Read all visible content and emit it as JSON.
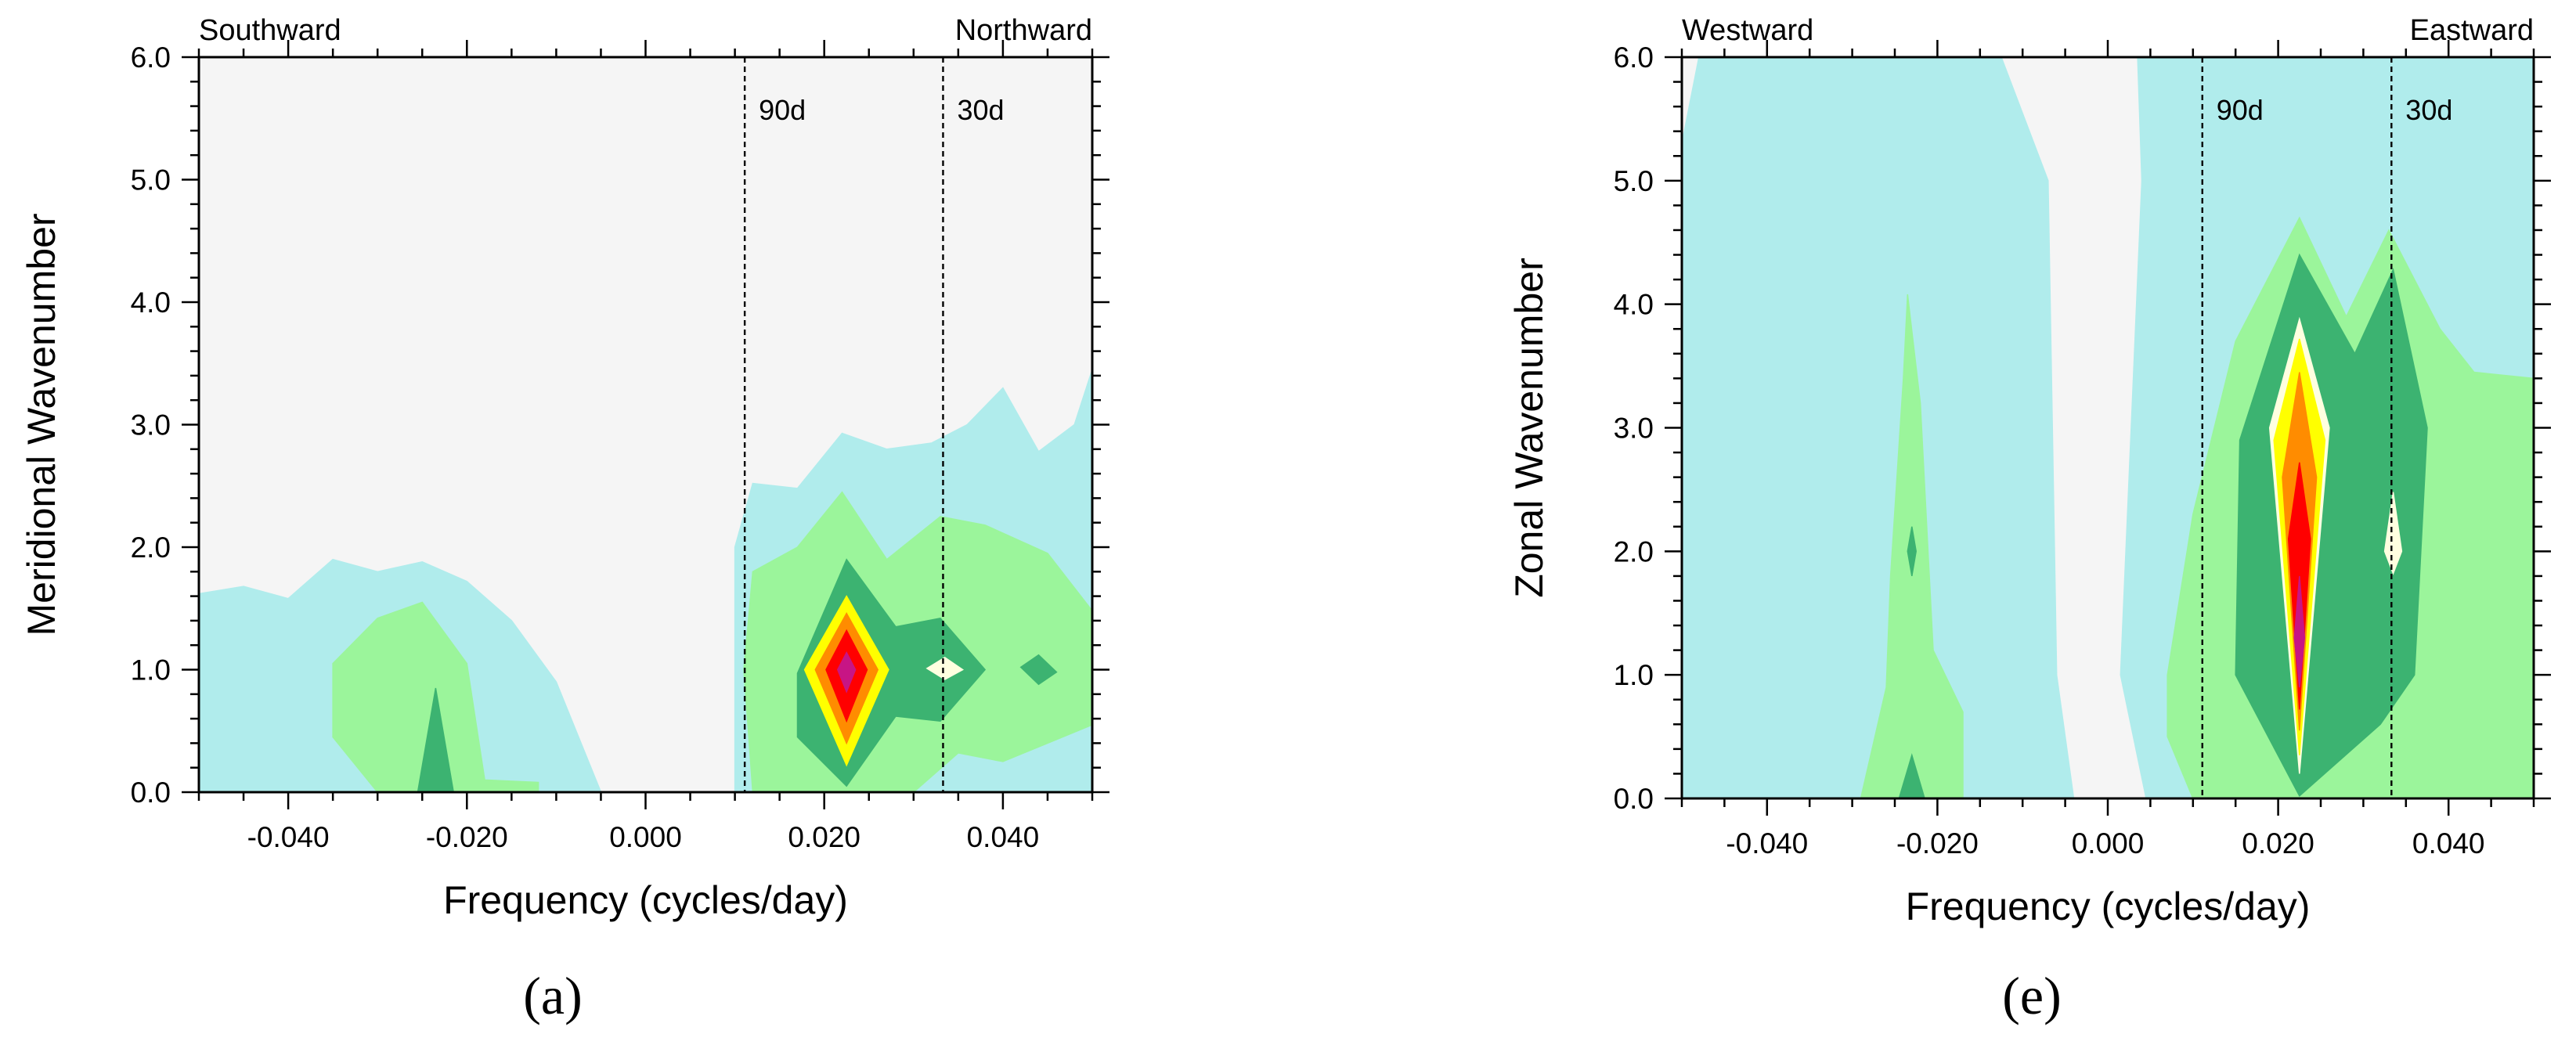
{
  "chart_data": [
    {
      "type": "contour",
      "panel_label": "(a)",
      "xlabel": "Frequency (cycles/day)",
      "ylabel": "Meridional Wavenumber",
      "left_note": "Southward",
      "right_note": "Northward",
      "xlim": [
        -0.05,
        0.05
      ],
      "ylim": [
        0,
        6
      ],
      "x_ticks": [
        -0.04,
        -0.02,
        0.0,
        0.02,
        0.04
      ],
      "x_tick_labels": [
        "-0.040",
        "-0.020",
        "0.000",
        "0.020",
        "0.040"
      ],
      "y_ticks": [
        0,
        1,
        2,
        3,
        4,
        5,
        6
      ],
      "y_tick_labels": [
        "0.0",
        "1.0",
        "2.0",
        "3.0",
        "4.0",
        "5.0",
        "6.0"
      ],
      "period_lines": [
        {
          "label": "90d",
          "frequency": 0.0111
        },
        {
          "label": "30d",
          "frequency": 0.0333
        }
      ],
      "contour_levels": [
        {
          "level": 1,
          "color": "#b0ecec",
          "regions": [
            [
              [
                -0.05,
                1.62
              ],
              [
                -0.045,
                1.68
              ],
              [
                -0.04,
                1.58
              ],
              [
                -0.035,
                1.9
              ],
              [
                -0.03,
                1.8
              ],
              [
                -0.025,
                1.88
              ],
              [
                -0.02,
                1.72
              ],
              [
                -0.015,
                1.4
              ],
              [
                -0.01,
                0.9
              ],
              [
                -0.005,
                0.0
              ],
              [
                -0.05,
                0.0
              ]
            ],
            [
              [
                0.01,
                0.0
              ],
              [
                0.01,
                2.0
              ],
              [
                0.012,
                2.52
              ],
              [
                0.017,
                2.48
              ],
              [
                0.022,
                2.93
              ],
              [
                0.027,
                2.8
              ],
              [
                0.032,
                2.85
              ],
              [
                0.036,
                3.0
              ],
              [
                0.04,
                3.3
              ],
              [
                0.044,
                2.78
              ],
              [
                0.048,
                3.0
              ],
              [
                0.05,
                3.45
              ],
              [
                0.05,
                0.0
              ]
            ]
          ]
        },
        {
          "level": 2,
          "color": "#9bf59b",
          "regions": [
            [
              [
                -0.035,
                1.05
              ],
              [
                -0.03,
                1.42
              ],
              [
                -0.025,
                1.55
              ],
              [
                -0.02,
                1.05
              ],
              [
                -0.018,
                0.1
              ],
              [
                -0.012,
                0.08
              ],
              [
                -0.012,
                0.0
              ],
              [
                -0.03,
                0.0
              ],
              [
                -0.035,
                0.45
              ]
            ],
            [
              [
                0.011,
                1.0
              ],
              [
                0.012,
                1.8
              ],
              [
                0.017,
                2.0
              ],
              [
                0.022,
                2.45
              ],
              [
                0.027,
                1.9
              ],
              [
                0.033,
                2.25
              ],
              [
                0.038,
                2.18
              ],
              [
                0.045,
                1.95
              ],
              [
                0.05,
                1.48
              ],
              [
                0.05,
                0.55
              ],
              [
                0.045,
                0.4
              ],
              [
                0.04,
                0.25
              ],
              [
                0.035,
                0.32
              ],
              [
                0.03,
                0.0
              ],
              [
                0.012,
                0.0
              ]
            ]
          ]
        },
        {
          "level": 3,
          "color": "#3cb371",
          "regions": [
            [
              [
                -0.0255,
                0.0
              ],
              [
                -0.0235,
                0.85
              ],
              [
                -0.0215,
                0.0
              ]
            ],
            [
              [
                0.017,
                0.97
              ],
              [
                0.0225,
                1.9
              ],
              [
                0.028,
                1.35
              ],
              [
                0.033,
                1.42
              ],
              [
                0.038,
                1.0
              ],
              [
                0.033,
                0.58
              ],
              [
                0.028,
                0.62
              ],
              [
                0.0225,
                0.05
              ],
              [
                0.017,
                0.45
              ]
            ],
            [
              [
                0.042,
                1.02
              ],
              [
                0.044,
                1.12
              ],
              [
                0.046,
                0.98
              ],
              [
                0.044,
                0.88
              ]
            ]
          ]
        },
        {
          "level": 4,
          "color": "#ffffe0",
          "regions": [
            [
              [
                0.0315,
                1.01
              ],
              [
                0.0335,
                1.1
              ],
              [
                0.0355,
                1.0
              ],
              [
                0.0335,
                0.92
              ]
            ]
          ]
        },
        {
          "level": 5,
          "color": "#ffff00",
          "regions": [
            [
              [
                0.0178,
                1.0
              ],
              [
                0.0225,
                1.6
              ],
              [
                0.0272,
                1.0
              ],
              [
                0.0225,
                0.22
              ]
            ]
          ]
        },
        {
          "level": 6,
          "color": "#ff8c00",
          "regions": [
            [
              [
                0.019,
                1.0
              ],
              [
                0.0225,
                1.46
              ],
              [
                0.026,
                1.0
              ],
              [
                0.0225,
                0.4
              ]
            ]
          ]
        },
        {
          "level": 7,
          "color": "#ff0000",
          "regions": [
            [
              [
                0.0202,
                1.0
              ],
              [
                0.0225,
                1.32
              ],
              [
                0.0248,
                1.0
              ],
              [
                0.0225,
                0.58
              ]
            ]
          ]
        },
        {
          "level": 8,
          "color": "#c71585",
          "regions": [
            [
              [
                0.0215,
                1.0
              ],
              [
                0.0225,
                1.14
              ],
              [
                0.0235,
                1.0
              ],
              [
                0.0225,
                0.82
              ]
            ]
          ]
        }
      ]
    },
    {
      "type": "contour",
      "panel_label": "(e)",
      "xlabel": "Frequency (cycles/day)",
      "ylabel": "Zonal Wavenumber",
      "left_note": "Westward",
      "right_note": "Eastward",
      "xlim": [
        -0.05,
        0.05
      ],
      "ylim": [
        0,
        6
      ],
      "x_ticks": [
        -0.04,
        -0.02,
        0.0,
        0.02,
        0.04
      ],
      "x_tick_labels": [
        "-0.040",
        "-0.020",
        "0.000",
        "0.020",
        "0.040"
      ],
      "y_ticks": [
        0,
        1,
        2,
        3,
        4,
        5,
        6
      ],
      "y_tick_labels": [
        "0.0",
        "1.0",
        "2.0",
        "3.0",
        "4.0",
        "5.0",
        "6.0"
      ],
      "period_lines": [
        {
          "label": "90d",
          "frequency": 0.0111
        },
        {
          "label": "30d",
          "frequency": 0.0333
        }
      ],
      "contour_levels": [
        {
          "level": 1,
          "color": "#b0ecec",
          "regions": [
            [
              [
                -0.05,
                5.3
              ],
              [
                -0.048,
                6.0
              ],
              [
                -0.0125,
                6.0
              ],
              [
                -0.007,
                5.0
              ],
              [
                -0.006,
                1.0
              ],
              [
                -0.004,
                0.0
              ],
              [
                -0.05,
                0.0
              ]
            ],
            [
              [
                0.0035,
                6.0
              ],
              [
                0.05,
                6.0
              ],
              [
                0.05,
                0.0
              ],
              [
                0.0045,
                0.0
              ],
              [
                0.0015,
                1.0
              ],
              [
                0.004,
                5.0
              ]
            ]
          ]
        },
        {
          "level": 2,
          "color": "#9bf59b",
          "regions": [
            [
              [
                -0.024,
                3.4
              ],
              [
                -0.0235,
                4.08
              ],
              [
                -0.022,
                3.2
              ],
              [
                -0.0205,
                1.2
              ],
              [
                -0.017,
                0.7
              ],
              [
                -0.017,
                0.0
              ],
              [
                -0.029,
                0.0
              ],
              [
                -0.026,
                0.9
              ],
              [
                -0.0255,
                1.8
              ]
            ],
            [
              [
                0.007,
                1.0
              ],
              [
                0.01,
                2.3
              ],
              [
                0.015,
                3.7
              ],
              [
                0.0225,
                4.7
              ],
              [
                0.028,
                3.9
              ],
              [
                0.033,
                4.6
              ],
              [
                0.039,
                3.8
              ],
              [
                0.043,
                3.45
              ],
              [
                0.05,
                3.4
              ],
              [
                0.05,
                0.0
              ],
              [
                0.01,
                0.0
              ],
              [
                0.007,
                0.5
              ]
            ]
          ]
        },
        {
          "level": 3,
          "color": "#3cb371",
          "regions": [
            [
              [
                -0.0235,
                2.0
              ],
              [
                -0.023,
                2.2
              ],
              [
                -0.0225,
                2.0
              ],
              [
                -0.023,
                1.8
              ]
            ],
            [
              [
                -0.0245,
                0.0
              ],
              [
                -0.023,
                0.35
              ],
              [
                -0.0215,
                0.0
              ]
            ],
            [
              [
                0.0155,
                2.9
              ],
              [
                0.0225,
                4.4
              ],
              [
                0.029,
                3.6
              ],
              [
                0.0335,
                4.28
              ],
              [
                0.0375,
                3.0
              ],
              [
                0.036,
                1.0
              ],
              [
                0.032,
                0.6
              ],
              [
                0.0225,
                0.02
              ],
              [
                0.015,
                1.0
              ]
            ]
          ]
        },
        {
          "level": 4,
          "color": "#ffffe0",
          "regions": [
            [
              [
                0.019,
                3.0
              ],
              [
                0.0225,
                3.88
              ],
              [
                0.026,
                3.0
              ],
              [
                0.0225,
                0.2
              ]
            ],
            [
              [
                0.0325,
                2.0
              ],
              [
                0.0335,
                2.48
              ],
              [
                0.0345,
                2.0
              ],
              [
                0.0335,
                1.82
              ]
            ]
          ]
        },
        {
          "level": 5,
          "color": "#ffff00",
          "regions": [
            [
              [
                0.0195,
                2.9
              ],
              [
                0.0225,
                3.72
              ],
              [
                0.0255,
                2.9
              ],
              [
                0.0225,
                0.35
              ]
            ]
          ]
        },
        {
          "level": 6,
          "color": "#ff8c00",
          "regions": [
            [
              [
                0.0205,
                2.6
              ],
              [
                0.0225,
                3.45
              ],
              [
                0.0245,
                2.6
              ],
              [
                0.0225,
                0.55
              ]
            ]
          ]
        },
        {
          "level": 7,
          "color": "#ff0000",
          "regions": [
            [
              [
                0.0212,
                2.1
              ],
              [
                0.0225,
                2.72
              ],
              [
                0.0238,
                2.1
              ],
              [
                0.0225,
                0.72
              ]
            ]
          ]
        },
        {
          "level": 8,
          "color": "#c71585",
          "regions": [
            [
              [
                0.0219,
                1.3
              ],
              [
                0.0225,
                1.8
              ],
              [
                0.0231,
                1.3
              ],
              [
                0.0225,
                0.9
              ]
            ]
          ]
        }
      ]
    }
  ]
}
